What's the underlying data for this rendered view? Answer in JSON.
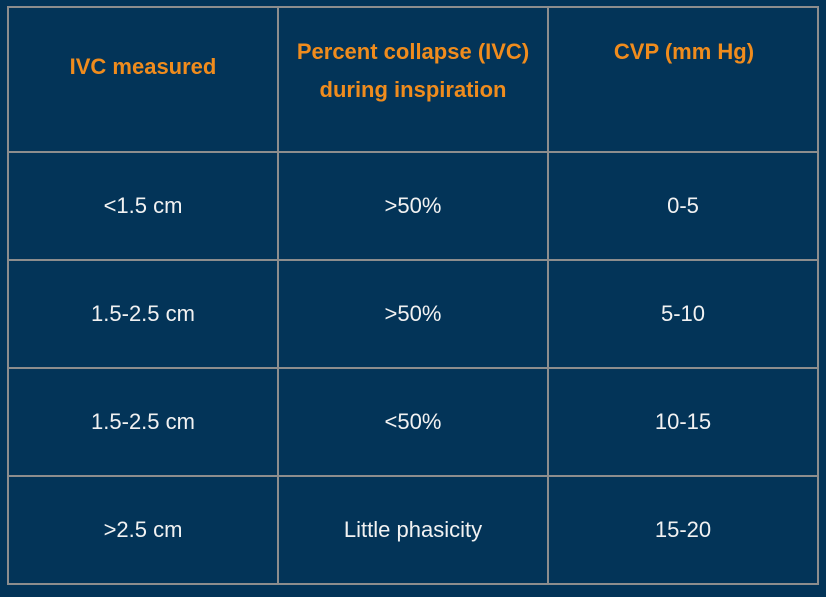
{
  "table": {
    "headers": [
      "IVC measured",
      "Percent collapse (IVC) during inspiration",
      "CVP (mm Hg)"
    ],
    "rows": [
      [
        "<1.5 cm",
        ">50%",
        "0-5"
      ],
      [
        "1.5-2.5 cm",
        ">50%",
        "5-10"
      ],
      [
        "1.5-2.5 cm",
        "<50%",
        "10-15"
      ],
      [
        ">2.5 cm",
        "Little phasicity",
        "15-20"
      ]
    ]
  },
  "colors": {
    "background": "#033458",
    "header_text": "#f08c1d",
    "body_text": "#f2f2f2",
    "grid": "#8d8d8d"
  }
}
